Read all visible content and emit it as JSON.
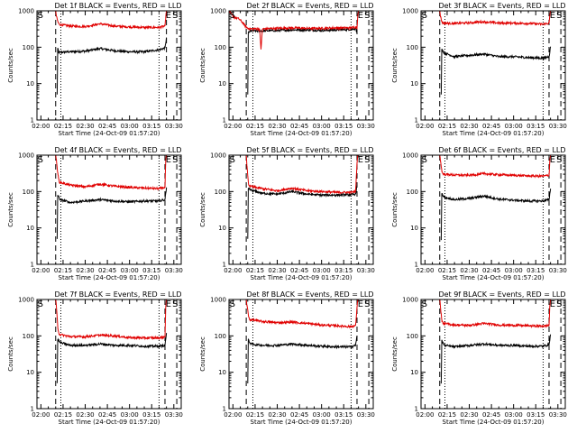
{
  "figure": {
    "xlabel": "Start Time (24-Oct-09 01:57:20)",
    "ylabel": "Counts/sec",
    "x_ticks": [
      "02:00",
      "02:15",
      "02:30",
      "02:45",
      "03:00",
      "03:15",
      "03:30"
    ],
    "y_ticks": [
      "1",
      "10",
      "100",
      "1000"
    ],
    "colors": {
      "events": "#000000",
      "lld": "#e00000",
      "background": "#ffffff"
    }
  },
  "chart_data": [
    {
      "type": "line",
      "title": "Det 1f BLACK = Events, RED = LLD",
      "xlabel": "Start Time (24-Oct-09 01:57:20)",
      "ylabel": "Counts/sec",
      "x_unit": "minutes after 02:00",
      "xlim": [
        -2.67,
        95
      ],
      "ylim": [
        1,
        1000
      ],
      "yscale": "log",
      "series": [
        {
          "name": "Events",
          "color": "#000000",
          "x": [
            11,
            11.4,
            12,
            20,
            30,
            40,
            50,
            60,
            70,
            80,
            84,
            85
          ],
          "y": [
            5,
            95,
            72,
            75,
            78,
            92,
            80,
            75,
            75,
            85,
            95,
            180
          ]
        },
        {
          "name": "LLD",
          "color": "#e00000",
          "x": [
            10,
            10.5,
            11.5,
            12.5,
            20,
            30,
            40,
            50,
            60,
            70,
            80,
            84,
            84.5,
            85
          ],
          "y": [
            1000,
            700,
            500,
            420,
            380,
            370,
            440,
            380,
            360,
            350,
            350,
            380,
            650,
            1000
          ]
        }
      ],
      "markers": [
        {
          "label": "S",
          "x": -2.3
        },
        {
          "label": "E",
          "x": 84.5
        },
        {
          "label": "S",
          "x": 89
        }
      ],
      "vlines_dashed": [
        10,
        85,
        92
      ],
      "vlines_dotted": [
        13.5,
        80
      ]
    },
    {
      "type": "line",
      "title": "Det 2f BLACK = Events, RED = LLD",
      "xlabel": "Start Time (24-Oct-09 01:57:20)",
      "ylabel": "Counts/sec",
      "x_unit": "minutes after 02:00",
      "xlim": [
        -2.67,
        95
      ],
      "ylim": [
        1,
        1000
      ],
      "yscale": "log",
      "series": [
        {
          "name": "Events",
          "color": "#000000",
          "x": [
            10,
            10.4,
            12,
            20,
            30,
            40,
            50,
            60,
            70,
            80,
            83,
            84
          ],
          "y": [
            5,
            250,
            280,
            280,
            290,
            300,
            300,
            290,
            300,
            310,
            330,
            260
          ]
        },
        {
          "name": "LLD",
          "color": "#e00000",
          "x": [
            -2.5,
            0,
            4,
            6,
            8,
            10,
            11,
            12,
            18,
            19,
            20,
            30,
            40,
            50,
            60,
            70,
            80,
            83,
            84,
            84.5,
            85
          ],
          "y": [
            1000,
            700,
            600,
            500,
            400,
            330,
            330,
            320,
            320,
            90,
            320,
            330,
            340,
            330,
            330,
            340,
            340,
            360,
            350,
            700,
            1000
          ]
        }
      ],
      "markers": [
        {
          "label": "S",
          "x": -2.3
        },
        {
          "label": "E",
          "x": 84.5
        },
        {
          "label": "S",
          "x": 89
        }
      ],
      "vlines_dashed": [
        9,
        84,
        92
      ],
      "vlines_dotted": [
        13.5,
        80
      ]
    },
    {
      "type": "line",
      "title": "Det 3f BLACK = Events, RED = LLD",
      "xlabel": "Start Time (24-Oct-09 01:57:20)",
      "ylabel": "Counts/sec",
      "x_unit": "minutes after 02:00",
      "xlim": [
        -2.67,
        95
      ],
      "ylim": [
        1,
        1000
      ],
      "yscale": "log",
      "series": [
        {
          "name": "Events",
          "color": "#000000",
          "x": [
            11,
            11.4,
            13,
            20,
            30,
            40,
            50,
            60,
            70,
            80,
            84,
            85
          ],
          "y": [
            5,
            90,
            70,
            55,
            60,
            65,
            55,
            55,
            52,
            50,
            55,
            100
          ]
        },
        {
          "name": "LLD",
          "color": "#e00000",
          "x": [
            10,
            10.5,
            11.5,
            12.5,
            20,
            30,
            40,
            50,
            60,
            70,
            80,
            84,
            84.5,
            85
          ],
          "y": [
            1000,
            700,
            500,
            460,
            450,
            470,
            500,
            460,
            460,
            450,
            430,
            460,
            700,
            1000
          ]
        }
      ],
      "markers": [
        {
          "label": "S",
          "x": -2.3
        },
        {
          "label": "E",
          "x": 84.5
        },
        {
          "label": "S",
          "x": 89
        }
      ],
      "vlines_dashed": [
        10,
        84,
        92
      ],
      "vlines_dotted": [
        13.5,
        80
      ]
    },
    {
      "type": "line",
      "title": "Det 4f BLACK = Events, RED = LLD",
      "xlabel": "Start Time (24-Oct-09 01:57:20)",
      "ylabel": "Counts/sec",
      "x_unit": "minutes after 02:00",
      "xlim": [
        -2.67,
        95
      ],
      "ylim": [
        1,
        1000
      ],
      "yscale": "log",
      "series": [
        {
          "name": "Events",
          "color": "#000000",
          "x": [
            11,
            11.4,
            13,
            20,
            30,
            40,
            50,
            60,
            70,
            80,
            84,
            85
          ],
          "y": [
            5,
            80,
            60,
            50,
            55,
            60,
            55,
            52,
            55,
            55,
            60,
            130
          ]
        },
        {
          "name": "LLD",
          "color": "#e00000",
          "x": [
            10,
            10.5,
            11.5,
            12.5,
            20,
            30,
            40,
            50,
            60,
            70,
            80,
            84,
            84.5,
            85
          ],
          "y": [
            1000,
            700,
            300,
            180,
            150,
            135,
            160,
            140,
            130,
            125,
            120,
            130,
            700,
            1000
          ]
        }
      ],
      "markers": [
        {
          "label": "S",
          "x": -2.3
        },
        {
          "label": "E",
          "x": 84.5
        },
        {
          "label": "S",
          "x": 89
        }
      ],
      "vlines_dashed": [
        10,
        84,
        92
      ],
      "vlines_dotted": [
        13.5,
        80
      ]
    },
    {
      "type": "line",
      "title": "Det 5f BLACK = Events, RED = LLD",
      "xlabel": "Start Time (24-Oct-09 01:57:20)",
      "ylabel": "Counts/sec",
      "x_unit": "minutes after 02:00",
      "xlim": [
        -2.67,
        95
      ],
      "ylim": [
        1,
        1000
      ],
      "yscale": "log",
      "series": [
        {
          "name": "Events",
          "color": "#000000",
          "x": [
            10,
            10.4,
            12,
            20,
            30,
            40,
            50,
            60,
            70,
            80,
            83,
            84
          ],
          "y": [
            5,
            120,
            110,
            90,
            85,
            100,
            85,
            80,
            80,
            82,
            85,
            150
          ]
        },
        {
          "name": "LLD",
          "color": "#e00000",
          "x": [
            9,
            9.5,
            10.5,
            11.5,
            20,
            30,
            40,
            50,
            60,
            70,
            80,
            83,
            84,
            84.5
          ],
          "y": [
            1000,
            500,
            160,
            140,
            120,
            105,
            125,
            105,
            100,
            95,
            95,
            100,
            600,
            1000
          ]
        }
      ],
      "markers": [
        {
          "label": "S",
          "x": -2.3
        },
        {
          "label": "E",
          "x": 84.5
        },
        {
          "label": "S",
          "x": 89
        }
      ],
      "vlines_dashed": [
        9,
        84,
        92
      ],
      "vlines_dotted": [
        13.5,
        80
      ]
    },
    {
      "type": "line",
      "title": "Det 6f BLACK = Events, RED = LLD",
      "xlabel": "Start Time (24-Oct-09 01:57:20)",
      "ylabel": "Counts/sec",
      "x_unit": "minutes after 02:00",
      "xlim": [
        -2.67,
        95
      ],
      "ylim": [
        1,
        1000
      ],
      "yscale": "log",
      "series": [
        {
          "name": "Events",
          "color": "#000000",
          "x": [
            11,
            11.4,
            13,
            20,
            30,
            40,
            50,
            60,
            70,
            80,
            84,
            85
          ],
          "y": [
            5,
            90,
            70,
            60,
            65,
            75,
            62,
            58,
            55,
            55,
            60,
            120
          ]
        },
        {
          "name": "LLD",
          "color": "#e00000",
          "x": [
            10,
            10.5,
            11.5,
            12.5,
            20,
            30,
            40,
            50,
            60,
            70,
            80,
            84,
            84.5,
            85
          ],
          "y": [
            1000,
            700,
            350,
            300,
            285,
            280,
            310,
            290,
            280,
            270,
            265,
            280,
            700,
            1000
          ]
        }
      ],
      "markers": [
        {
          "label": "S",
          "x": -2.3
        },
        {
          "label": "E",
          "x": 84.5
        },
        {
          "label": "S",
          "x": 89
        }
      ],
      "vlines_dashed": [
        10,
        84,
        92
      ],
      "vlines_dotted": [
        13.5,
        80
      ]
    },
    {
      "type": "line",
      "title": "Det 7f BLACK = Events, RED = LLD",
      "xlabel": "Start Time (24-Oct-09 01:57:20)",
      "ylabel": "Counts/sec",
      "x_unit": "minutes after 02:00",
      "xlim": [
        -2.67,
        95
      ],
      "ylim": [
        1,
        1000
      ],
      "yscale": "log",
      "series": [
        {
          "name": "Events",
          "color": "#000000",
          "x": [
            11,
            11.4,
            13,
            20,
            30,
            40,
            50,
            60,
            70,
            80,
            84,
            85
          ],
          "y": [
            5,
            80,
            65,
            55,
            55,
            60,
            55,
            55,
            52,
            52,
            55,
            120
          ]
        },
        {
          "name": "LLD",
          "color": "#e00000",
          "x": [
            10,
            10.5,
            11.5,
            12.5,
            20,
            30,
            40,
            50,
            60,
            70,
            80,
            84,
            84.5,
            85
          ],
          "y": [
            1000,
            600,
            160,
            110,
            95,
            95,
            105,
            100,
            90,
            88,
            88,
            95,
            600,
            1000
          ]
        }
      ],
      "markers": [
        {
          "label": "S",
          "x": -2.3
        },
        {
          "label": "E",
          "x": 84.5
        },
        {
          "label": "S",
          "x": 89
        }
      ],
      "vlines_dashed": [
        10,
        84,
        92
      ],
      "vlines_dotted": [
        13.5,
        80
      ]
    },
    {
      "type": "line",
      "title": "Det 8f BLACK = Events, RED = LLD",
      "xlabel": "Start Time (24-Oct-09 01:57:20)",
      "ylabel": "Counts/sec",
      "x_unit": "minutes after 02:00",
      "xlim": [
        -2.67,
        95
      ],
      "ylim": [
        1,
        1000
      ],
      "yscale": "log",
      "series": [
        {
          "name": "Events",
          "color": "#000000",
          "x": [
            10,
            10.4,
            12,
            20,
            30,
            40,
            50,
            60,
            70,
            80,
            83,
            84
          ],
          "y": [
            5,
            80,
            60,
            55,
            55,
            60,
            55,
            52,
            50,
            50,
            55,
            100
          ]
        },
        {
          "name": "LLD",
          "color": "#e00000",
          "x": [
            9,
            9.5,
            10.5,
            11.5,
            20,
            30,
            40,
            50,
            60,
            70,
            80,
            83,
            84,
            84.5
          ],
          "y": [
            1000,
            700,
            350,
            280,
            250,
            230,
            240,
            220,
            200,
            190,
            180,
            190,
            600,
            1000
          ]
        }
      ],
      "markers": [
        {
          "label": "S",
          "x": -2.3
        },
        {
          "label": "E",
          "x": 84.5
        },
        {
          "label": "S",
          "x": 89
        }
      ],
      "vlines_dashed": [
        9,
        84,
        92
      ],
      "vlines_dotted": [
        13.5,
        80
      ]
    },
    {
      "type": "line",
      "title": "Det 9f BLACK = Events, RED = LLD",
      "xlabel": "Start Time (24-Oct-09 01:57:20)",
      "ylabel": "Counts/sec",
      "x_unit": "minutes after 02:00",
      "xlim": [
        -2.67,
        95
      ],
      "ylim": [
        1,
        1000
      ],
      "yscale": "log",
      "series": [
        {
          "name": "Events",
          "color": "#000000",
          "x": [
            11,
            11.4,
            13,
            20,
            30,
            40,
            50,
            60,
            70,
            80,
            84,
            85
          ],
          "y": [
            5,
            75,
            55,
            50,
            55,
            60,
            55,
            55,
            52,
            52,
            58,
            110
          ]
        },
        {
          "name": "LLD",
          "color": "#e00000",
          "x": [
            10,
            10.5,
            11.5,
            12.5,
            20,
            30,
            40,
            50,
            60,
            70,
            80,
            84,
            84.5,
            85
          ],
          "y": [
            1000,
            600,
            250,
            220,
            200,
            195,
            220,
            200,
            195,
            190,
            185,
            195,
            650,
            1000
          ]
        }
      ],
      "markers": [
        {
          "label": "S",
          "x": -2.3
        },
        {
          "label": "E",
          "x": 84.5
        },
        {
          "label": "S",
          "x": 89
        }
      ],
      "vlines_dashed": [
        10,
        84,
        92
      ],
      "vlines_dotted": [
        13.5,
        80
      ]
    }
  ]
}
